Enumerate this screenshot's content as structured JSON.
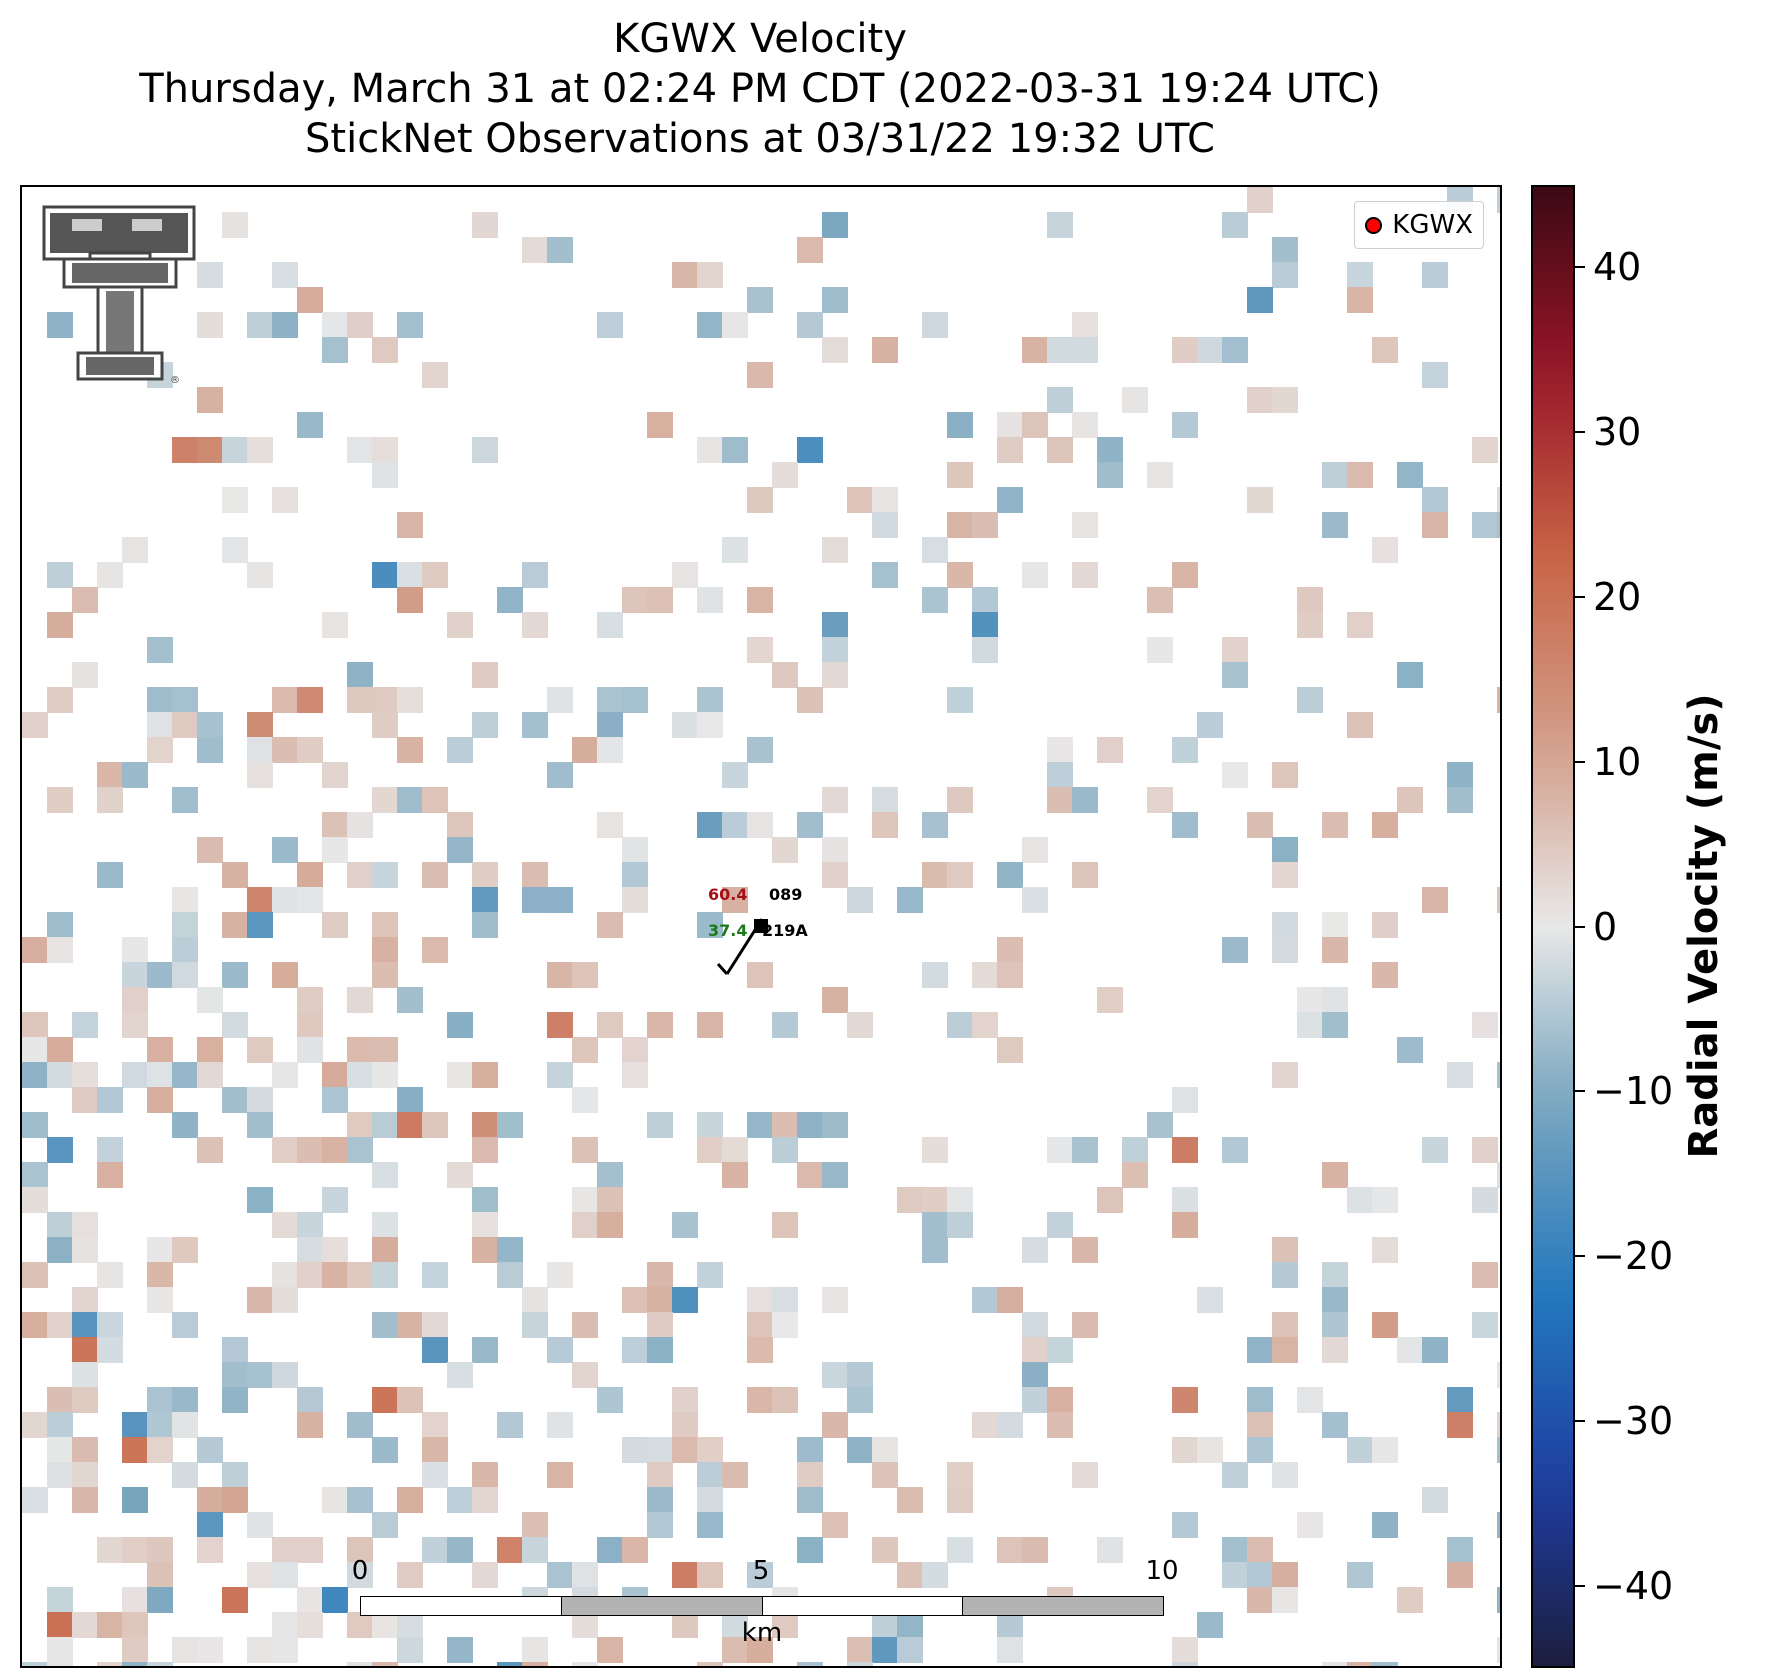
{
  "title": {
    "line1": "KGWX Velocity",
    "line2": "Thursday, March 31 at 02:24 PM CDT (2022-03-31 19:24 UTC)",
    "line3": "StickNet Observations at 03/31/22 19:32 UTC"
  },
  "legend": {
    "label": "KGWX",
    "marker_color": "#ff0000"
  },
  "station": {
    "temperature": "60.4",
    "temperature_color": "#a50f15",
    "dewpoint": "37.4",
    "dewpoint_color": "#1a7a1a",
    "id_top": "089",
    "id_bottom": "219A"
  },
  "scalebar": {
    "ticks": [
      "0",
      "5",
      "10"
    ],
    "unit": "km",
    "segment_colors": [
      "#ffffff",
      "#b3b3b3",
      "#ffffff",
      "#b3b3b3"
    ]
  },
  "colorbar": {
    "label": "Radial Velocity (m/s)",
    "ticks": [
      "40",
      "30",
      "20",
      "10",
      "0",
      "−10",
      "−20",
      "−30",
      "−40"
    ],
    "vmin": -45,
    "vmax": 45
  },
  "logo": {
    "name": "texas-tech-double-t-logo",
    "registered_mark": "®"
  }
}
